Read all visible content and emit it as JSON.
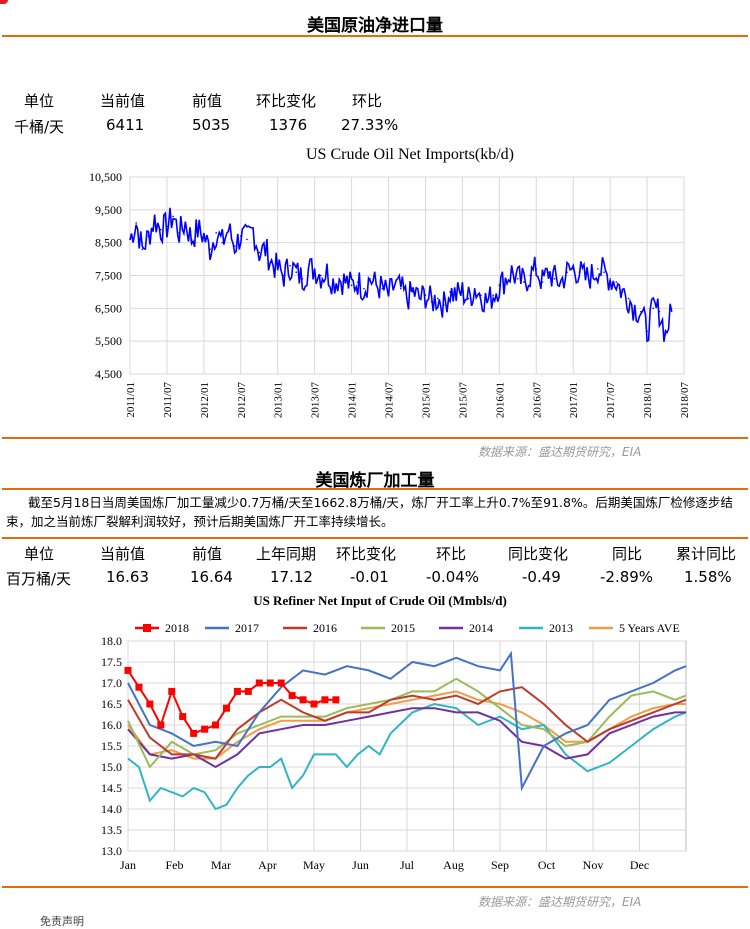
{
  "section1": {
    "title": "美国原油净进口量",
    "table": {
      "headers": [
        "单位",
        "当前值",
        "前值",
        "环比变化",
        "环比"
      ],
      "values": [
        "千桶/天",
        "6411",
        "5035",
        "1376",
        "27.33%"
      ]
    },
    "source": "数据来源：盛达期货研究，EIA"
  },
  "section2": {
    "title": "美国炼厂加工量",
    "paragraph": "截至5月18日当周美国炼厂加工量减少0.7万桶/天至1662.8万桶/天，炼厂开工率上升0.7%至91.8%。后期美国炼厂检修逐步结束，加之当前炼厂裂解利润较好，预计后期美国炼厂开工率持续增长。",
    "table": {
      "headers": [
        "单位",
        "当前值",
        "前值",
        "上年同期",
        "环比变化",
        "环比",
        "同比变化",
        "同比",
        "累计同比"
      ],
      "values": [
        "百万桶/天",
        "16.63",
        "16.64",
        "17.12",
        "-0.01",
        "-0.04%",
        "-0.49",
        "-2.89%",
        "1.58%"
      ]
    },
    "source": "数据来源：盛达期货研究，EIA"
  },
  "footer_text": "免责声明",
  "chart_data": [
    {
      "type": "line",
      "title": "US Crude Oil Net Imports(kb/d)",
      "xlabel": "",
      "ylabel": "",
      "ylim": [
        4500,
        10500
      ],
      "yticks": [
        "4,500",
        "5,500",
        "6,500",
        "7,500",
        "8,500",
        "9,500",
        "10,500"
      ],
      "xticks": [
        "2011/01",
        "2011/07",
        "2012/01",
        "2012/07",
        "2013/01",
        "2013/07",
        "2014/01",
        "2014/07",
        "2015/01",
        "2015/07",
        "2016/01",
        "2016/07",
        "2017/01",
        "2017/07",
        "2018/01",
        "2018/07"
      ],
      "grid": true,
      "color": "#0000ff",
      "series": [
        {
          "x": [
            "2011/01",
            "2011/02",
            "2011/03",
            "2011/04",
            "2011/05",
            "2011/06",
            "2011/07",
            "2011/08",
            "2011/09",
            "2011/10",
            "2011/11",
            "2011/12",
            "2012/01",
            "2012/02",
            "2012/03",
            "2012/04",
            "2012/05",
            "2012/06",
            "2012/07",
            "2012/08",
            "2012/09",
            "2012/10",
            "2012/11",
            "2012/12",
            "2013/01",
            "2013/02",
            "2013/03",
            "2013/04",
            "2013/05",
            "2013/06",
            "2013/07",
            "2013/08",
            "2013/09",
            "2013/10",
            "2013/11",
            "2013/12",
            "2014/01",
            "2014/02",
            "2014/03",
            "2014/04",
            "2014/05",
            "2014/06",
            "2014/07",
            "2014/08",
            "2014/09",
            "2014/10",
            "2014/11",
            "2014/12",
            "2015/01",
            "2015/02",
            "2015/03",
            "2015/04",
            "2015/05",
            "2015/06",
            "2015/07",
            "2015/08",
            "2015/09",
            "2015/10",
            "2015/11",
            "2015/12",
            "2016/01",
            "2016/02",
            "2016/03",
            "2016/04",
            "2016/05",
            "2016/06",
            "2016/07",
            "2016/08",
            "2016/09",
            "2016/10",
            "2016/11",
            "2016/12",
            "2017/01",
            "2017/02",
            "2017/03",
            "2017/04",
            "2017/05",
            "2017/06",
            "2017/07",
            "2017/08",
            "2017/09",
            "2017/10",
            "2017/11",
            "2017/12",
            "2018/01",
            "2018/02",
            "2018/03",
            "2018/04",
            "2018/05"
          ],
          "values": [
            8600,
            9100,
            8300,
            8700,
            9200,
            8900,
            9000,
            9300,
            8800,
            9100,
            8600,
            8900,
            8700,
            8300,
            8800,
            8500,
            8900,
            8400,
            8700,
            8600,
            8900,
            8200,
            8300,
            7900,
            7700,
            7500,
            7800,
            7600,
            7400,
            7700,
            7700,
            7500,
            7600,
            7300,
            7400,
            7300,
            7200,
            7300,
            7100,
            7400,
            7200,
            7100,
            6900,
            7200,
            7100,
            6800,
            7000,
            6800,
            6900,
            6700,
            6800,
            6600,
            7000,
            6900,
            7000,
            6800,
            7100,
            6900,
            6700,
            6900,
            7200,
            7400,
            7600,
            7400,
            7300,
            7500,
            7700,
            7300,
            7600,
            7400,
            7300,
            7600,
            7700,
            7600,
            7400,
            7500,
            7700,
            7600,
            7400,
            7300,
            7000,
            6800,
            6500,
            6400,
            5800,
            6500,
            6400,
            5700,
            6411
          ]
        }
      ]
    },
    {
      "type": "line",
      "title": "US Refiner Net Input of Crude Oil (Mmbls/d)",
      "xlabel": "",
      "ylabel": "",
      "ylim": [
        13.0,
        18.0
      ],
      "yticks": [
        "13.0",
        "13.5",
        "14.0",
        "14.5",
        "15.0",
        "15.5",
        "16.0",
        "16.5",
        "17.0",
        "17.5",
        "18.0"
      ],
      "categories": [
        "Jan",
        "Feb",
        "Mar",
        "Apr",
        "May",
        "Jun",
        "Jul",
        "Aug",
        "Sep",
        "Oct",
        "Nov",
        "Dec"
      ],
      "legend_position": "top",
      "grid": true,
      "series": [
        {
          "name": "2018",
          "color": "#ff0000",
          "marker": "square",
          "x": [
            1,
            2,
            3,
            4,
            5,
            6,
            7,
            8,
            9,
            10,
            11,
            12,
            13,
            14,
            15,
            16,
            17,
            18,
            19,
            20
          ],
          "values": [
            17.3,
            16.9,
            16.5,
            16.0,
            16.8,
            16.2,
            15.8,
            15.9,
            16.0,
            16.4,
            16.8,
            16.8,
            17.0,
            17.0,
            17.0,
            16.7,
            16.6,
            16.5,
            16.6,
            16.6
          ]
        },
        {
          "name": "2017",
          "color": "#4472c4",
          "x": [
            1,
            3,
            5,
            7,
            9,
            11,
            13,
            15,
            17,
            19,
            21,
            23,
            25,
            27,
            29,
            31,
            33,
            35,
            36,
            37,
            39,
            41,
            43,
            45,
            47,
            49,
            51,
            52
          ],
          "values": [
            17.0,
            16.0,
            15.8,
            15.5,
            15.6,
            15.5,
            16.3,
            16.9,
            17.3,
            17.2,
            17.4,
            17.3,
            17.1,
            17.5,
            17.4,
            17.6,
            17.4,
            17.3,
            17.7,
            14.5,
            15.5,
            15.8,
            16.0,
            16.6,
            16.8,
            17.0,
            17.3,
            17.4
          ]
        },
        {
          "name": "2016",
          "color": "#c0392b",
          "x": [
            1,
            3,
            5,
            7,
            9,
            11,
            13,
            15,
            17,
            19,
            21,
            23,
            25,
            27,
            29,
            31,
            33,
            35,
            37,
            39,
            41,
            43,
            45,
            47,
            49,
            51,
            52
          ],
          "values": [
            16.6,
            15.7,
            15.3,
            15.3,
            15.2,
            15.9,
            16.3,
            16.6,
            16.3,
            16.1,
            16.3,
            16.3,
            16.6,
            16.7,
            16.6,
            16.7,
            16.5,
            16.8,
            16.9,
            16.5,
            16.0,
            15.6,
            15.9,
            16.1,
            16.3,
            16.5,
            16.6
          ]
        },
        {
          "name": "2015",
          "color": "#9bbb59",
          "x": [
            1,
            3,
            5,
            7,
            9,
            11,
            13,
            15,
            17,
            19,
            21,
            23,
            25,
            27,
            29,
            31,
            33,
            35,
            37,
            39,
            41,
            43,
            45,
            47,
            49,
            51,
            52
          ],
          "values": [
            16.1,
            15.0,
            15.6,
            15.3,
            15.4,
            15.8,
            16.0,
            16.2,
            16.2,
            16.2,
            16.4,
            16.5,
            16.6,
            16.8,
            16.8,
            17.1,
            16.8,
            16.4,
            16.0,
            15.9,
            15.5,
            15.6,
            16.2,
            16.7,
            16.8,
            16.6,
            16.7
          ]
        },
        {
          "name": "2014",
          "color": "#7030a0",
          "x": [
            1,
            3,
            5,
            7,
            9,
            11,
            13,
            15,
            17,
            19,
            21,
            23,
            25,
            27,
            29,
            31,
            33,
            35,
            37,
            39,
            41,
            43,
            45,
            47,
            49,
            51,
            52
          ],
          "values": [
            15.9,
            15.3,
            15.2,
            15.3,
            15.0,
            15.3,
            15.8,
            15.9,
            16.0,
            16.0,
            16.1,
            16.2,
            16.3,
            16.4,
            16.4,
            16.3,
            16.3,
            16.1,
            15.6,
            15.5,
            15.2,
            15.3,
            15.8,
            16.0,
            16.2,
            16.3,
            16.3
          ]
        },
        {
          "name": "2013",
          "color": "#31b5c6",
          "x": [
            1,
            2,
            3,
            4,
            5,
            6,
            7,
            8,
            9,
            10,
            11,
            12,
            13,
            14,
            15,
            16,
            17,
            18,
            19,
            20,
            21,
            22,
            23,
            24,
            25,
            27,
            29,
            31,
            33,
            35,
            37,
            39,
            41,
            43,
            45,
            47,
            49,
            51,
            52
          ],
          "values": [
            15.2,
            15.0,
            14.2,
            14.5,
            14.4,
            14.3,
            14.5,
            14.4,
            14.0,
            14.1,
            14.5,
            14.8,
            15.0,
            15.0,
            15.2,
            14.5,
            14.8,
            15.3,
            15.3,
            15.3,
            15.0,
            15.3,
            15.5,
            15.3,
            15.8,
            16.3,
            16.5,
            16.4,
            16.0,
            16.2,
            15.9,
            16.0,
            15.3,
            14.9,
            15.1,
            15.5,
            15.9,
            16.2,
            16.3
          ]
        },
        {
          "name": "5 Years AVE",
          "color": "#f39c45",
          "x": [
            1,
            3,
            5,
            7,
            9,
            11,
            13,
            15,
            17,
            19,
            21,
            23,
            25,
            27,
            29,
            31,
            33,
            35,
            37,
            39,
            41,
            43,
            45,
            47,
            49,
            51,
            52
          ],
          "values": [
            16.0,
            15.3,
            15.4,
            15.2,
            15.2,
            15.6,
            15.9,
            16.1,
            16.1,
            16.1,
            16.3,
            16.4,
            16.5,
            16.6,
            16.7,
            16.8,
            16.6,
            16.5,
            16.3,
            16.0,
            15.6,
            15.6,
            15.9,
            16.2,
            16.4,
            16.5,
            16.5
          ]
        }
      ]
    }
  ]
}
